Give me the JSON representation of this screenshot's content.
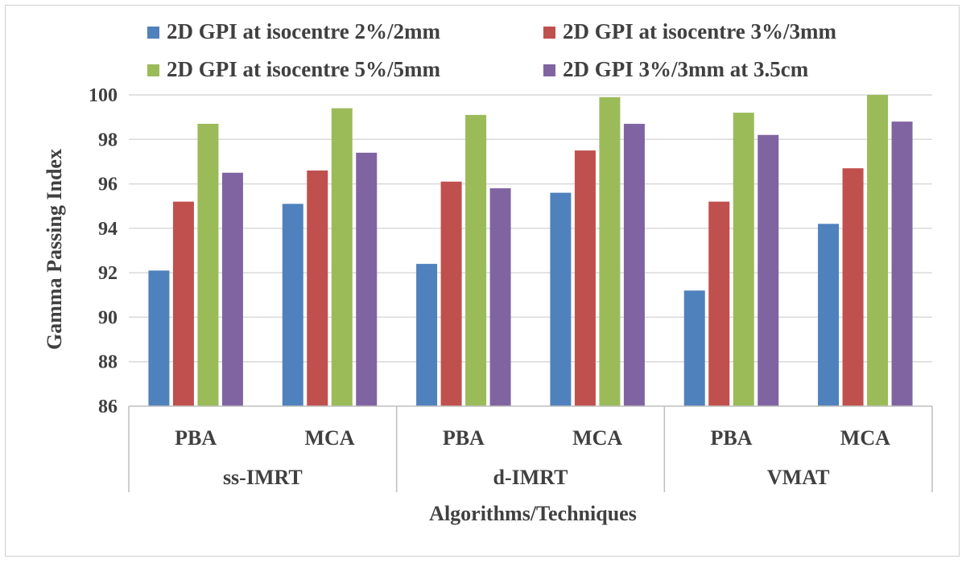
{
  "chart_data": {
    "type": "bar",
    "title": "",
    "xlabel": "Algorithms/Techniques",
    "ylabel": "Gamma  Passing Index",
    "ylim": [
      86,
      100
    ],
    "yticks": [
      86,
      88,
      90,
      92,
      94,
      96,
      98,
      100
    ],
    "grid": true,
    "legend_position": "top",
    "groups": [
      {
        "label": "ss-IMRT",
        "categories": [
          "PBA",
          "MCA"
        ]
      },
      {
        "label": "d-IMRT",
        "categories": [
          "PBA",
          "MCA"
        ]
      },
      {
        "label": "VMAT",
        "categories": [
          "PBA",
          "MCA"
        ]
      }
    ],
    "categories": [
      "PBA",
      "MCA",
      "PBA",
      "MCA",
      "PBA",
      "MCA"
    ],
    "series": [
      {
        "name": "2D GPI at isocentre 2%/2mm",
        "color": "#4f81bd",
        "values": [
          92.1,
          95.1,
          92.4,
          95.6,
          91.2,
          94.2
        ]
      },
      {
        "name": "2D GPI at isocentre 3%/3mm",
        "color": "#c0504d",
        "values": [
          95.2,
          96.6,
          96.1,
          97.5,
          95.2,
          96.7
        ]
      },
      {
        "name": "2D GPI at isocentre 5%/5mm",
        "color": "#9bbb59",
        "values": [
          98.7,
          99.4,
          99.1,
          99.9,
          99.2,
          100.0
        ]
      },
      {
        "name": "2D GPI 3%/3mm at 3.5cm",
        "color": "#8064a2",
        "values": [
          96.5,
          97.4,
          95.8,
          98.7,
          98.2,
          98.8
        ]
      }
    ]
  }
}
